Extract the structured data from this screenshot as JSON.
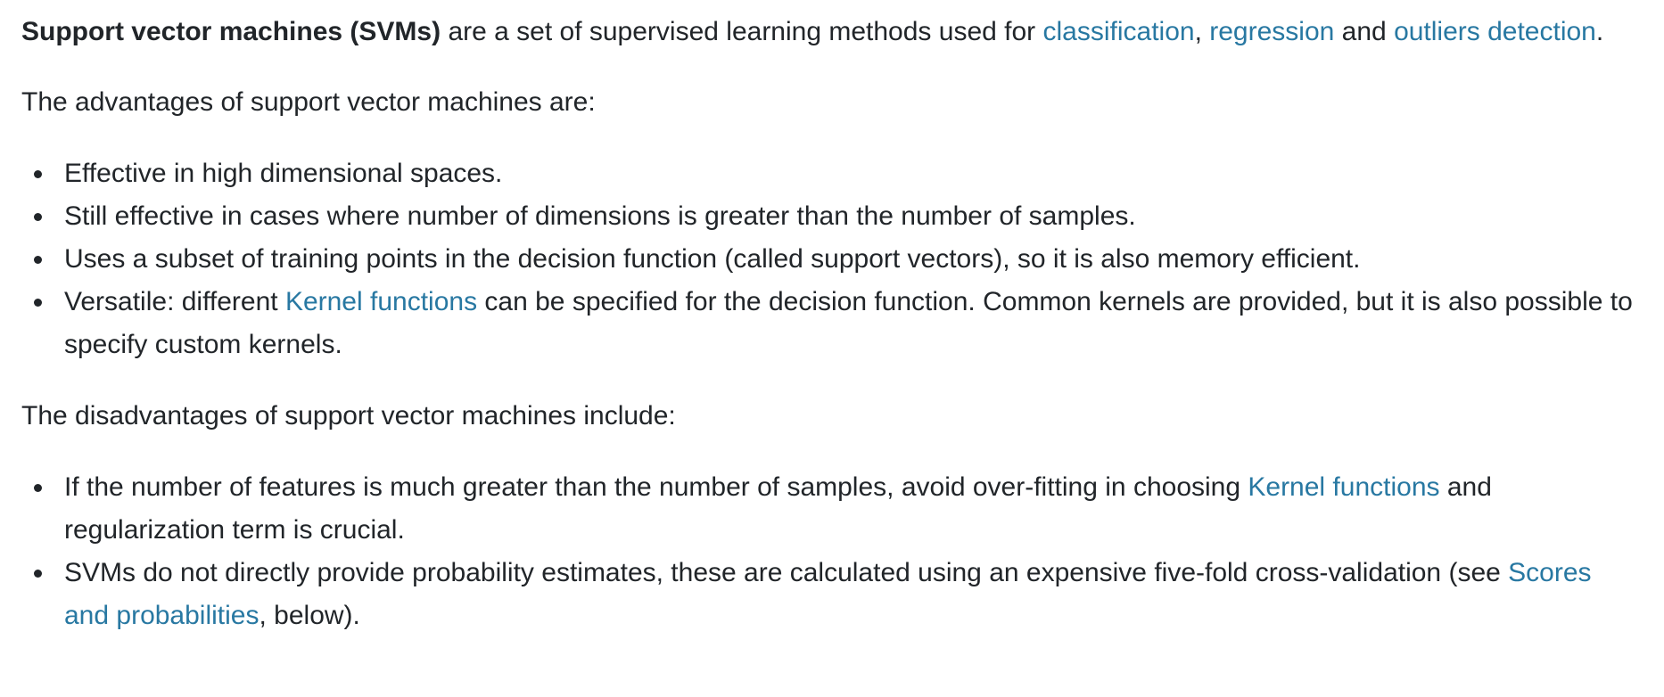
{
  "intro": {
    "bold": "Support vector machines (SVMs)",
    "text1": " are a set of supervised learning methods used for ",
    "link_classification": "classification",
    "sep1": ", ",
    "link_regression": "regression",
    "sep2": " and ",
    "link_outliers": "outliers detection",
    "end": "."
  },
  "advantages": {
    "lead": "The advantages of support vector machines are:",
    "items": [
      "Effective in high dimensional spaces.",
      "Still effective in cases where number of dimensions is greater than the number of samples.",
      "Uses a subset of training points in the decision function (called support vectors), so it is also memory efficient."
    ],
    "versatile": {
      "before": "Versatile: different ",
      "link": "Kernel functions",
      "after": " can be specified for the decision function. Common kernels are provided, but it is also possible to specify custom kernels."
    }
  },
  "disadvantages": {
    "lead": "The disadvantages of support vector machines include:",
    "item1": {
      "before": "If the number of features is much greater than the number of samples, avoid over-fitting in choosing ",
      "link": "Kernel functions",
      "after": " and regularization term is crucial."
    },
    "item2": {
      "before": "SVMs do not directly provide probability estimates, these are calculated using an expensive five-fold cross-validation (see ",
      "link": "Scores and probabilities",
      "after": ", below)."
    }
  },
  "colors": {
    "text": "#212529",
    "link": "#2878a2",
    "background": "#ffffff"
  }
}
